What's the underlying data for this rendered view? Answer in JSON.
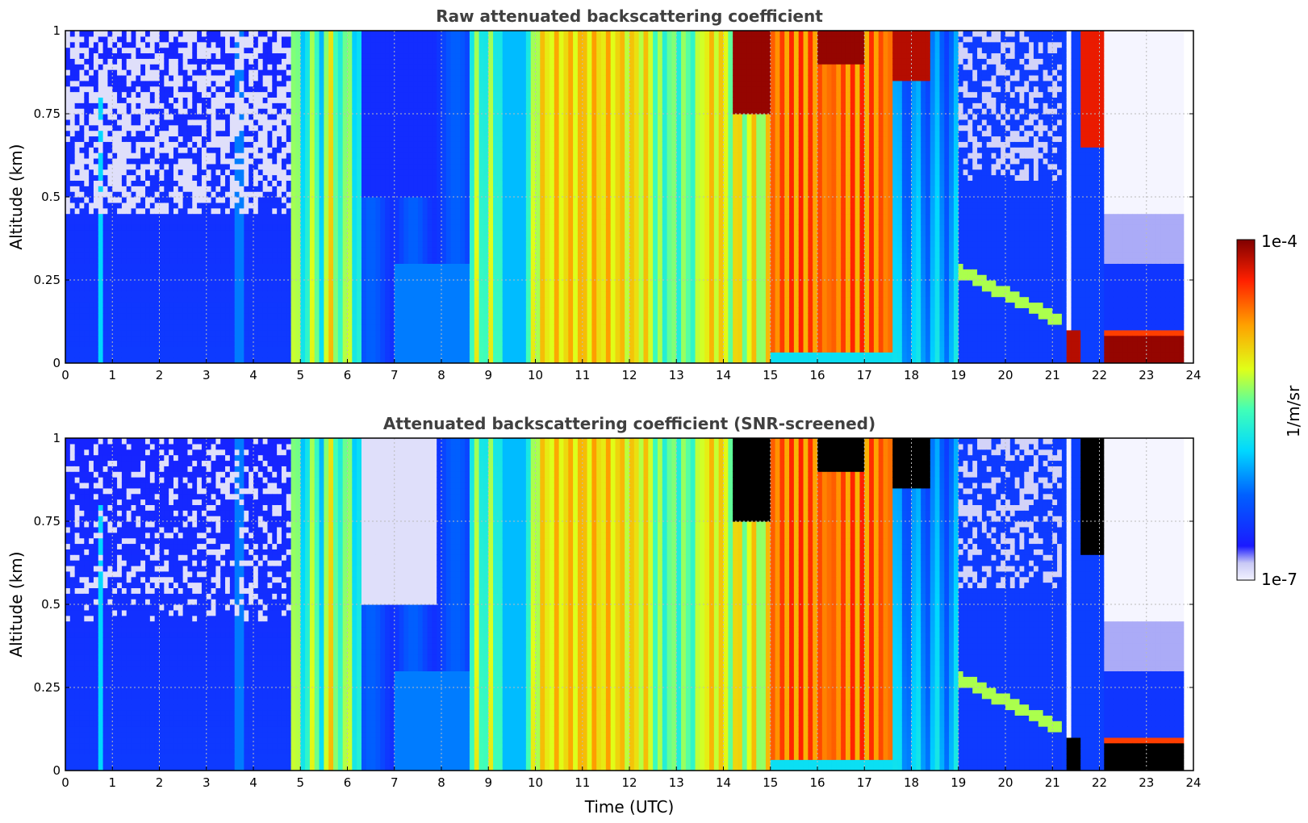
{
  "chart_data": [
    {
      "type": "heatmap",
      "title": "Raw attenuated backscattering coefficient",
      "xlabel": "",
      "ylabel": "Altitude (km)",
      "xlim": [
        0,
        24
      ],
      "ylim": [
        0,
        1
      ],
      "xticks": [
        "0",
        "1",
        "2",
        "3",
        "4",
        "5",
        "6",
        "7",
        "8",
        "9",
        "10",
        "11",
        "12",
        "13",
        "14",
        "15",
        "16",
        "17",
        "18",
        "19",
        "20",
        "21",
        "22",
        "23",
        "24"
      ],
      "yticks": [
        "0",
        "0.25",
        "0.5",
        "0.75",
        "1"
      ],
      "grid": true,
      "colormap": "jet",
      "profiles": [
        {
          "t": [
            0,
            4.8
          ],
          "level": 0.17
        },
        {
          "t": [
            0.7,
            0.8
          ],
          "level": 0.4
        },
        {
          "t": [
            4.95,
            6.3
          ],
          "level": 0.62
        },
        {
          "t": [
            6.3,
            8.5
          ],
          "level": 0.3
        },
        {
          "t": [
            8.5,
            10.0
          ],
          "level": 0.62
        },
        {
          "t": [
            10.0,
            14.0
          ],
          "level": 0.68
        },
        {
          "t": [
            14.0,
            15.0
          ],
          "level": 0.72
        },
        {
          "t": [
            15.0,
            17.6
          ],
          "level": 0.86
        },
        {
          "t": [
            17.6,
            19.0
          ],
          "level": 0.38
        },
        {
          "t": [
            19.0,
            21.3
          ],
          "level": 0.2
        },
        {
          "t": [
            21.3,
            22.1
          ],
          "level": 0.18
        },
        {
          "t": [
            22.1,
            23.8
          ],
          "level": 0.05
        }
      ]
    },
    {
      "type": "heatmap",
      "title": "Attenuated backscattering coefficient (SNR-screened)",
      "xlabel": "Time (UTC)",
      "ylabel": "Altitude (km)",
      "xlim": [
        0,
        24
      ],
      "ylim": [
        0,
        1
      ],
      "xticks": [
        "0",
        "1",
        "2",
        "3",
        "4",
        "5",
        "6",
        "7",
        "8",
        "9",
        "10",
        "11",
        "12",
        "13",
        "14",
        "15",
        "16",
        "17",
        "18",
        "19",
        "20",
        "21",
        "22",
        "23",
        "24"
      ],
      "yticks": [
        "0",
        "0.25",
        "0.5",
        "0.75",
        "1"
      ],
      "grid": true,
      "colormap": "jet"
    }
  ],
  "colorbar": {
    "label": "1/m/sr",
    "max_label": "1e-4",
    "min_label": "1e-7",
    "range": [
      1e-07,
      0.0001
    ],
    "scale": "log"
  },
  "colors": {
    "title": "#404040",
    "background": "#0000ff",
    "screened": "#000000"
  }
}
